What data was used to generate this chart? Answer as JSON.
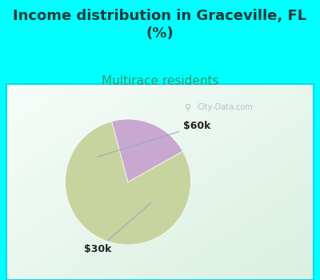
{
  "title": "Income distribution in Graceville, FL\n(%)",
  "subtitle": "Multirace residents",
  "title_fontsize": 13,
  "subtitle_fontsize": 11,
  "title_color": "#1a3a3a",
  "subtitle_color": "#2a9a6a",
  "outer_bg_color": "#00ffff",
  "chart_bg_top_color": "#e8f5f0",
  "chart_bg_bottom_color": "#c8e8d8",
  "chart_border_color": "#00ddee",
  "slices": [
    {
      "label": "$30k",
      "value": 79,
      "color": "#c8d4a0"
    },
    {
      "label": "$60k",
      "value": 21,
      "color": "#c8a8d0"
    }
  ],
  "startangle": 105,
  "watermark_text": "City-Data.com",
  "watermark_color": "#aabbcc",
  "label_fontsize": 9,
  "label_color": "#222222",
  "annotation_line_color": "#99aabb"
}
